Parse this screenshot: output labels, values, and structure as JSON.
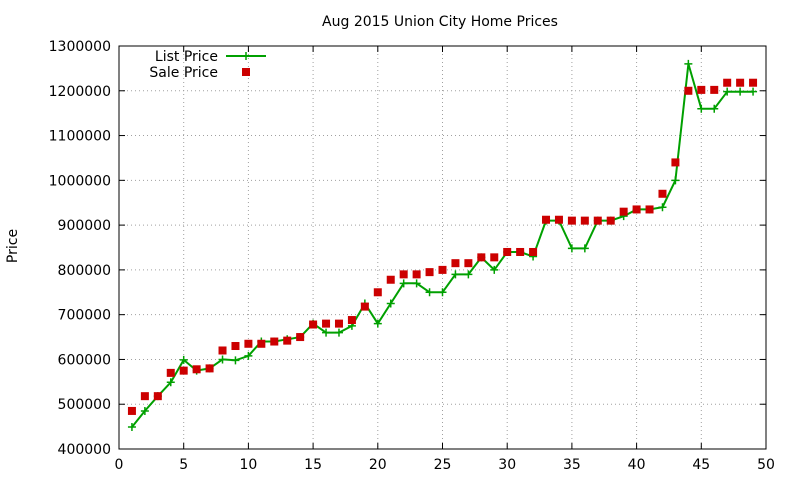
{
  "chart_data": {
    "type": "line",
    "title": "Aug 2015 Union City Home Prices",
    "xlabel": "",
    "ylabel": "Price",
    "xlim": [
      0,
      50
    ],
    "ylim": [
      400000,
      1300000
    ],
    "xticks": [
      0,
      5,
      10,
      15,
      20,
      25,
      30,
      35,
      40,
      45,
      50
    ],
    "yticks": [
      400000,
      500000,
      600000,
      700000,
      800000,
      900000,
      1000000,
      1100000,
      1200000,
      1300000
    ],
    "grid": true,
    "legend_position": "top-left",
    "series": [
      {
        "name": "List Price",
        "style": "line-plus",
        "color": "#00a000",
        "points": [
          [
            1,
            449000
          ],
          [
            2,
            485000
          ],
          [
            3,
            518000
          ],
          [
            4,
            549000
          ],
          [
            5,
            599000
          ],
          [
            6,
            575000
          ],
          [
            7,
            580000
          ],
          [
            8,
            600000
          ],
          [
            9,
            598000
          ],
          [
            10,
            608000
          ],
          [
            11,
            640000
          ],
          [
            12,
            640000
          ],
          [
            13,
            645000
          ],
          [
            14,
            650000
          ],
          [
            15,
            680000
          ],
          [
            16,
            660000
          ],
          [
            17,
            660000
          ],
          [
            18,
            675000
          ],
          [
            19,
            725000
          ],
          [
            20,
            680000
          ],
          [
            21,
            725000
          ],
          [
            22,
            770000
          ],
          [
            23,
            770000
          ],
          [
            24,
            750000
          ],
          [
            25,
            750000
          ],
          [
            26,
            790000
          ],
          [
            27,
            790000
          ],
          [
            28,
            828000
          ],
          [
            29,
            800000
          ],
          [
            30,
            840000
          ],
          [
            31,
            840000
          ],
          [
            32,
            830000
          ],
          [
            33,
            910000
          ],
          [
            34,
            910000
          ],
          [
            35,
            848000
          ],
          [
            36,
            848000
          ],
          [
            37,
            910000
          ],
          [
            38,
            910000
          ],
          [
            39,
            920000
          ],
          [
            40,
            935000
          ],
          [
            41,
            935000
          ],
          [
            42,
            940000
          ],
          [
            43,
            1000000
          ],
          [
            44,
            1260000
          ],
          [
            45,
            1160000
          ],
          [
            46,
            1160000
          ],
          [
            47,
            1198000
          ],
          [
            48,
            1198000
          ],
          [
            49,
            1198000
          ]
        ]
      },
      {
        "name": "Sale Price",
        "style": "square-markers",
        "color": "#cc0000",
        "points": [
          [
            1,
            485000
          ],
          [
            2,
            518000
          ],
          [
            3,
            518000
          ],
          [
            4,
            570000
          ],
          [
            5,
            575000
          ],
          [
            6,
            578000
          ],
          [
            7,
            580000
          ],
          [
            8,
            620000
          ],
          [
            9,
            630000
          ],
          [
            10,
            635000
          ],
          [
            11,
            635000
          ],
          [
            12,
            640000
          ],
          [
            13,
            642000
          ],
          [
            14,
            650000
          ],
          [
            15,
            678000
          ],
          [
            16,
            680000
          ],
          [
            17,
            680000
          ],
          [
            18,
            688000
          ],
          [
            19,
            718000
          ],
          [
            20,
            750000
          ],
          [
            21,
            778000
          ],
          [
            22,
            790000
          ],
          [
            23,
            790000
          ],
          [
            24,
            795000
          ],
          [
            25,
            800000
          ],
          [
            26,
            815000
          ],
          [
            27,
            815000
          ],
          [
            28,
            828000
          ],
          [
            29,
            828000
          ],
          [
            30,
            840000
          ],
          [
            31,
            840000
          ],
          [
            32,
            840000
          ],
          [
            33,
            912000
          ],
          [
            34,
            912000
          ],
          [
            35,
            910000
          ],
          [
            36,
            910000
          ],
          [
            37,
            910000
          ],
          [
            38,
            910000
          ],
          [
            39,
            930000
          ],
          [
            40,
            935000
          ],
          [
            41,
            935000
          ],
          [
            42,
            970000
          ],
          [
            43,
            1040000
          ],
          [
            44,
            1200000
          ],
          [
            45,
            1202000
          ],
          [
            46,
            1202000
          ],
          [
            47,
            1218000
          ],
          [
            48,
            1218000
          ],
          [
            49,
            1218000
          ]
        ]
      }
    ]
  }
}
